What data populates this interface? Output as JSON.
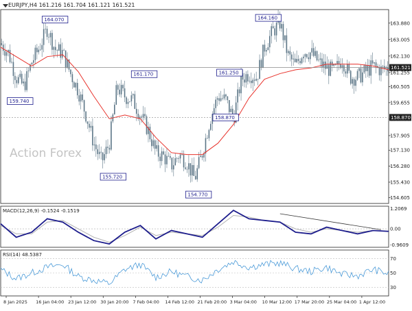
{
  "header": {
    "symbol": "EURJPY,H4",
    "ohlc": "161.216 161.704 161.121 161.521"
  },
  "watermark": "Action Forex",
  "colors": {
    "candle": "#5b7586",
    "ma": "#e8322b",
    "macd": "#1c1c8c",
    "macd_signal": "#b0b0b0",
    "rsi": "#4a9ad8",
    "label_text": "#1c1c8c",
    "label_bg": "#ffffff",
    "price_tag_bg": "#222222",
    "price_tag_text": "#ffffff"
  },
  "chart_data": [
    {
      "type": "line",
      "title": "EURJPY,H4",
      "ylim": [
        154.3,
        164.6
      ],
      "y_ticks": [
        "163.880",
        "163.005",
        "162.130",
        "161.255",
        "160.505",
        "159.655",
        "158.780",
        "157.905",
        "157.130",
        "156.280",
        "155.430",
        "154.605"
      ],
      "x_ticks": [
        "8 Jan 2025",
        "16 Jan 04:00",
        "23 Jan 12:00",
        "30 Jan 20:00",
        "7 Feb 04:00",
        "14 Feb 12:00",
        "21 Feb 20:00",
        "3 Mar 04:00",
        "10 Mar 12:00",
        "17 Mar 20:00",
        "25 Mar 04:00",
        "1 Apr 12:00"
      ],
      "x_range": [
        0,
        100
      ],
      "series": [
        {
          "type": "candlestick-close",
          "x": [
            0,
            2,
            4,
            6,
            8,
            10,
            12,
            14,
            16,
            18,
            20,
            22,
            24,
            26,
            28,
            30,
            32,
            34,
            36,
            38,
            40,
            42,
            44,
            46,
            48,
            50,
            52,
            54,
            56,
            58,
            60,
            62,
            64,
            66,
            68,
            70,
            72,
            74,
            76,
            78,
            80,
            82,
            84,
            86,
            88,
            90,
            92,
            94,
            96,
            98,
            100
          ],
          "values": [
            162.8,
            162.3,
            161.0,
            160.5,
            161.8,
            162.6,
            163.6,
            162.5,
            162.3,
            161.2,
            160.3,
            159.0,
            157.5,
            156.5,
            157.5,
            160.5,
            160.0,
            159.8,
            159.0,
            158.2,
            157.0,
            156.8,
            156.3,
            156.9,
            156.5,
            155.6,
            157.0,
            158.8,
            160.0,
            159.8,
            158.8,
            160.9,
            161.2,
            161.0,
            162.6,
            163.4,
            163.9,
            162.2,
            161.6,
            162.4,
            162.3,
            161.8,
            161.5,
            161.3,
            162.0,
            161.0,
            161.0,
            161.3,
            161.6,
            161.4,
            161.521
          ]
        },
        {
          "type": "line",
          "x": [
            0,
            4,
            8,
            12,
            16,
            20,
            24,
            28,
            32,
            36,
            40,
            44,
            48,
            52,
            56,
            60,
            64,
            68,
            72,
            76,
            80,
            84,
            88,
            92,
            96,
            100
          ],
          "values": [
            162.6,
            162.1,
            161.6,
            162.1,
            162.2,
            161.3,
            160.0,
            158.8,
            159.0,
            158.8,
            157.8,
            157.0,
            156.9,
            156.9,
            157.5,
            158.5,
            159.9,
            160.9,
            161.2,
            161.4,
            161.5,
            161.7,
            161.7,
            161.7,
            161.6,
            161.4
          ]
        }
      ],
      "annotations": [
        {
          "text": "164.070",
          "x": 14,
          "y": 164.07
        },
        {
          "text": "159.740",
          "x": 5,
          "y": 159.74
        },
        {
          "text": "161.170",
          "x": 37,
          "y": 161.17
        },
        {
          "text": "155.720",
          "x": 29,
          "y": 155.72
        },
        {
          "text": "154.770",
          "x": 51,
          "y": 154.77
        },
        {
          "text": "161.250",
          "x": 59,
          "y": 161.25
        },
        {
          "text": "158.870",
          "x": 58,
          "y": 158.87
        },
        {
          "text": "164.160",
          "x": 69,
          "y": 164.16
        }
      ],
      "hlines": [
        {
          "value": 161.521,
          "label": "161.521",
          "style": "solid"
        },
        {
          "value": 158.87,
          "label": "158.870",
          "style": "dotted"
        }
      ]
    },
    {
      "type": "line",
      "title": "MACD(12,26,9) -0.1524 -0.1519",
      "ylim": [
        -1.1,
        1.35
      ],
      "y_ticks": [
        "1.2069",
        "0.00",
        "-0.9609"
      ],
      "series": [
        {
          "name": "MACD",
          "x": [
            0,
            4,
            8,
            12,
            16,
            20,
            24,
            28,
            32,
            36,
            40,
            44,
            48,
            52,
            56,
            60,
            64,
            68,
            72,
            76,
            80,
            84,
            88,
            92,
            96,
            100
          ],
          "values": [
            0.3,
            -0.5,
            -0.2,
            0.6,
            0.4,
            -0.2,
            -0.7,
            -0.9,
            -0.2,
            0.2,
            -0.6,
            -0.1,
            -0.3,
            -0.5,
            0.3,
            1.1,
            0.6,
            0.5,
            0.4,
            -0.2,
            -0.3,
            0.1,
            -0.1,
            -0.3,
            -0.1,
            -0.15
          ]
        },
        {
          "name": "Signal",
          "x": [
            0,
            4,
            8,
            12,
            16,
            20,
            24,
            28,
            32,
            36,
            40,
            44,
            48,
            52,
            56,
            60,
            64,
            68,
            72,
            76,
            80,
            84,
            88,
            92,
            96,
            100
          ],
          "values": [
            0.2,
            -0.3,
            -0.3,
            0.4,
            0.5,
            0.0,
            -0.5,
            -0.8,
            -0.4,
            0.1,
            -0.4,
            -0.2,
            -0.3,
            -0.4,
            0.1,
            0.8,
            0.7,
            0.5,
            0.4,
            0.0,
            -0.2,
            0.0,
            -0.1,
            -0.2,
            -0.1,
            -0.15
          ]
        }
      ],
      "trendline": {
        "x": [
          72,
          98
        ],
        "values": [
          0.9,
          -0.05
        ]
      }
    },
    {
      "type": "line",
      "title": "RSI(14) 48.5387",
      "ylim": [
        18,
        82
      ],
      "y_ticks": [
        "70",
        "50",
        "30"
      ],
      "series": [
        {
          "name": "RSI",
          "x": [
            0,
            4,
            8,
            12,
            16,
            20,
            24,
            28,
            32,
            36,
            40,
            44,
            48,
            52,
            56,
            60,
            64,
            68,
            72,
            76,
            80,
            84,
            88,
            92,
            96,
            100
          ],
          "values": [
            55,
            42,
            50,
            58,
            62,
            45,
            40,
            35,
            55,
            62,
            44,
            52,
            45,
            40,
            55,
            66,
            58,
            62,
            64,
            56,
            52,
            58,
            48,
            46,
            55,
            48.5
          ]
        }
      ]
    }
  ]
}
